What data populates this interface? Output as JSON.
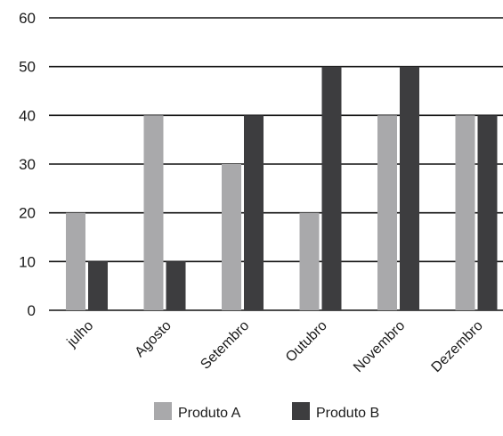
{
  "chart_data": {
    "type": "bar",
    "categories": [
      "julho",
      "Agosto",
      "Setembro",
      "Outubro",
      "Novembro",
      "Dezembro"
    ],
    "series": [
      {
        "name": "Produto A",
        "values": [
          20,
          40,
          30,
          20,
          40,
          40
        ],
        "color": "#a9a9ab"
      },
      {
        "name": "Produto B",
        "values": [
          10,
          10,
          40,
          50,
          50,
          40
        ],
        "color": "#3d3d3f"
      }
    ],
    "title": "",
    "xlabel": "",
    "ylabel": "",
    "ylim": [
      0,
      60
    ],
    "yticks": [
      0,
      10,
      20,
      30,
      40,
      50,
      60
    ],
    "grid": true,
    "legend": "bottom-center"
  }
}
